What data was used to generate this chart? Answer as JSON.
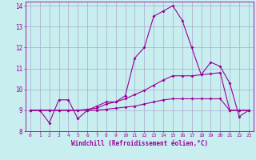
{
  "xlabel": "Windchill (Refroidissement éolien,°C)",
  "bg_color": "#c8eef0",
  "grid_color": "#aaaacc",
  "line_color": "#990099",
  "xlim": [
    -0.5,
    23.5
  ],
  "ylim": [
    8,
    14.2
  ],
  "yticks": [
    8,
    9,
    10,
    11,
    12,
    13,
    14
  ],
  "xticks": [
    0,
    1,
    2,
    3,
    4,
    5,
    6,
    7,
    8,
    9,
    10,
    11,
    12,
    13,
    14,
    15,
    16,
    17,
    18,
    19,
    20,
    21,
    22,
    23
  ],
  "series1": [
    9.0,
    9.0,
    8.4,
    9.5,
    9.5,
    8.6,
    9.0,
    9.2,
    9.4,
    9.4,
    9.7,
    11.5,
    12.0,
    13.5,
    13.75,
    14.0,
    13.3,
    12.0,
    10.7,
    11.3,
    11.1,
    10.3,
    8.7,
    9.0
  ],
  "series2": [
    9.0,
    9.0,
    9.0,
    9.0,
    9.0,
    9.0,
    9.0,
    9.0,
    9.05,
    9.1,
    9.15,
    9.2,
    9.3,
    9.4,
    9.5,
    9.55,
    9.55,
    9.55,
    9.55,
    9.55,
    9.55,
    9.0,
    9.0,
    9.0
  ],
  "series3": [
    9.0,
    9.0,
    9.0,
    9.0,
    9.0,
    9.0,
    9.05,
    9.1,
    9.3,
    9.4,
    9.55,
    9.75,
    9.95,
    10.2,
    10.45,
    10.65,
    10.65,
    10.65,
    10.7,
    10.75,
    10.8,
    9.0,
    9.0,
    9.0
  ]
}
